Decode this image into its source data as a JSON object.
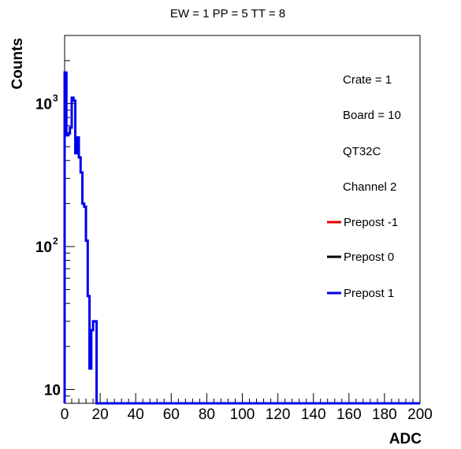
{
  "chart_data": {
    "type": "line",
    "title": "EW = 1 PP = 5 TT = 8",
    "xlabel": "ADC",
    "ylabel": "Counts",
    "xlim": [
      0,
      200
    ],
    "ylim": [
      8,
      3000
    ],
    "yscale": "log",
    "grid": false,
    "x_ticks": [
      0,
      20,
      40,
      60,
      80,
      100,
      120,
      140,
      160,
      180,
      200
    ],
    "x_tick_labels": [
      "0",
      "20",
      "40",
      "60",
      "80",
      "100",
      "120",
      "140",
      "160",
      "180",
      "200"
    ],
    "y_ticks": [
      {
        "value": 10,
        "base": "10",
        "exp": ""
      },
      {
        "value": 100,
        "base": "10",
        "exp": "2"
      },
      {
        "value": 1000,
        "base": "10",
        "exp": "3"
      }
    ],
    "info_lines": [
      "Crate = 1",
      "Board = 10",
      "QT32C",
      "Channel 2"
    ],
    "legend_position": "right",
    "series": [
      {
        "name": "Prepost -1",
        "color": "#e00000",
        "x": [],
        "y": []
      },
      {
        "name": "Prepost 0",
        "color": "#000000",
        "x": [],
        "y": []
      },
      {
        "name": "Prepost 1",
        "color": "#0000ee",
        "x": [
          0,
          1,
          2,
          3,
          4,
          5,
          6,
          7,
          8,
          9,
          10,
          11,
          12,
          13,
          14,
          15,
          16,
          17,
          18,
          19,
          20,
          200
        ],
        "y": [
          1650,
          600,
          620,
          680,
          1100,
          1050,
          450,
          580,
          420,
          330,
          200,
          190,
          110,
          45,
          14,
          26,
          30,
          30,
          0,
          0,
          0,
          0
        ]
      }
    ]
  }
}
